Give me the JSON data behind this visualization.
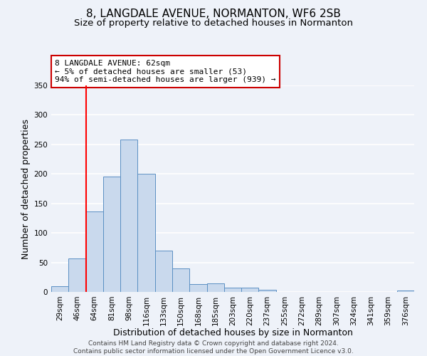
{
  "title": "8, LANGDALE AVENUE, NORMANTON, WF6 2SB",
  "subtitle": "Size of property relative to detached houses in Normanton",
  "bar_labels": [
    "29sqm",
    "46sqm",
    "64sqm",
    "81sqm",
    "98sqm",
    "116sqm",
    "133sqm",
    "150sqm",
    "168sqm",
    "185sqm",
    "203sqm",
    "220sqm",
    "237sqm",
    "255sqm",
    "272sqm",
    "289sqm",
    "307sqm",
    "324sqm",
    "341sqm",
    "359sqm",
    "376sqm"
  ],
  "bar_values": [
    10,
    57,
    136,
    195,
    258,
    200,
    70,
    40,
    13,
    14,
    7,
    7,
    4,
    0,
    0,
    0,
    0,
    0,
    0,
    0,
    3
  ],
  "bar_color": "#c9d9ed",
  "bar_edge_color": "#5a8fc3",
  "xlabel": "Distribution of detached houses by size in Normanton",
  "ylabel": "Number of detached properties",
  "ylim": [
    0,
    350
  ],
  "yticks": [
    0,
    50,
    100,
    150,
    200,
    250,
    300,
    350
  ],
  "red_line_index": 2,
  "annotation_title": "8 LANGDALE AVENUE: 62sqm",
  "annotation_line1": "← 5% of detached houses are smaller (53)",
  "annotation_line2": "94% of semi-detached houses are larger (939) →",
  "annotation_box_color": "#ffffff",
  "annotation_box_edge": "#cc0000",
  "footer_line1": "Contains HM Land Registry data © Crown copyright and database right 2024.",
  "footer_line2": "Contains public sector information licensed under the Open Government Licence v3.0.",
  "background_color": "#eef2f9",
  "grid_color": "#ffffff",
  "title_fontsize": 11,
  "subtitle_fontsize": 9.5,
  "axis_label_fontsize": 9,
  "tick_fontsize": 7.5,
  "annotation_fontsize": 8,
  "footer_fontsize": 6.5
}
